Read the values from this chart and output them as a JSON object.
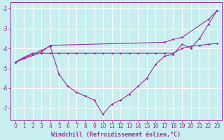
{
  "xlabel": "Windchill (Refroidissement éolien,°C)",
  "background_color": "#c8eef0",
  "grid_color": "#ffffff",
  "line_color": "#993399",
  "x": [
    0,
    1,
    2,
    3,
    4,
    5,
    6,
    7,
    8,
    9,
    10,
    11,
    12,
    13,
    14,
    15,
    16,
    17,
    18,
    19,
    20,
    21,
    22,
    23
  ],
  "curve1_x": [
    0,
    1,
    2,
    3,
    4,
    5,
    6,
    7,
    8,
    9,
    10,
    11,
    12,
    13,
    14,
    15,
    16,
    17,
    18,
    19,
    20,
    21,
    22,
    23
  ],
  "curve1_y": [
    -4.7,
    -4.45,
    -4.25,
    -4.25,
    -4.25,
    -4.25,
    -4.25,
    -4.25,
    -4.25,
    -4.25,
    -4.25,
    -4.25,
    -4.25,
    -4.25,
    -4.25,
    -4.25,
    -4.25,
    -4.25,
    -4.25,
    -4.0,
    -3.9,
    -3.85,
    -3.8,
    -3.75
  ],
  "curve2_x": [
    0,
    1,
    2,
    3,
    4,
    5,
    6,
    7,
    8,
    9,
    10,
    11,
    12,
    13,
    14,
    15,
    16,
    17,
    18,
    19,
    20,
    21,
    22,
    23
  ],
  "curve2_y": [
    -4.7,
    -4.5,
    -4.3,
    -4.1,
    -3.9,
    -5.3,
    -5.9,
    -6.2,
    -6.4,
    -6.6,
    -7.3,
    -6.8,
    -6.6,
    -6.3,
    -5.9,
    -5.5,
    -4.8,
    -4.4,
    -4.3,
    -3.8,
    -4.0,
    -3.5,
    -2.8,
    -2.1
  ],
  "curve3_x": [
    0,
    3,
    4,
    17,
    18,
    19,
    22,
    23
  ],
  "curve3_y": [
    -4.7,
    -4.2,
    -3.85,
    -3.7,
    -3.55,
    -3.45,
    -2.55,
    -2.1
  ],
  "ylim": [
    -7.6,
    -1.7
  ],
  "xlim": [
    -0.5,
    23.5
  ],
  "yticks": [
    -7,
    -6,
    -5,
    -4,
    -3,
    -2
  ],
  "xticks": [
    0,
    1,
    2,
    3,
    4,
    5,
    6,
    7,
    8,
    9,
    10,
    11,
    12,
    13,
    14,
    15,
    16,
    17,
    18,
    19,
    20,
    21,
    22,
    23
  ],
  "tick_fontsize": 5.5,
  "xlabel_fontsize": 6.0
}
